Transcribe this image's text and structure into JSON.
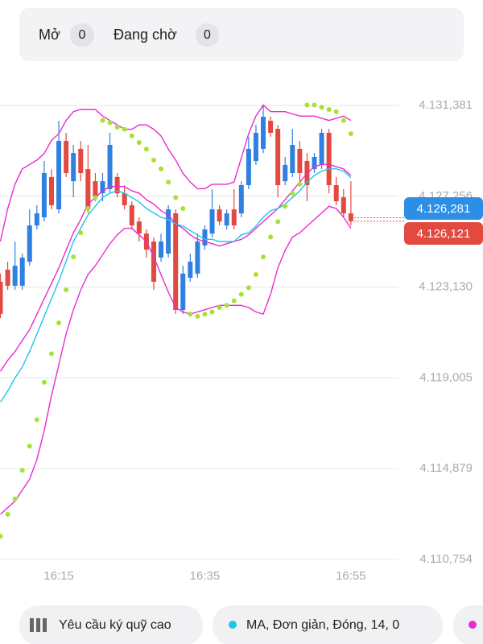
{
  "tabs": [
    {
      "label": "Mở",
      "count": 0
    },
    {
      "label": "Đang chờ",
      "count": 0
    }
  ],
  "chart_data": {
    "type": "candlestick",
    "x": [
      null,
      null,
      null,
      null,
      null,
      null,
      null,
      null,
      "16:15",
      null,
      null,
      null,
      null,
      null,
      null,
      null,
      null,
      null,
      null,
      null,
      null,
      null,
      null,
      null,
      null,
      null,
      null,
      null,
      "16:35",
      null,
      null,
      null,
      null,
      null,
      null,
      null,
      null,
      null,
      null,
      null,
      null,
      null,
      null,
      null,
      null,
      null,
      null,
      null,
      "16:55"
    ],
    "open": [
      4123.37,
      4123.92,
      4123.19,
      4123.19,
      4124.28,
      4125.93,
      4126.3,
      4128.13,
      4126.66,
      4129.77,
      4127.94,
      4129.41,
      4128.49,
      4127.94,
      4127.39,
      4127.58,
      4128.13,
      4127.39,
      4126.85,
      4126.11,
      4125.56,
      4125.2,
      4124.47,
      4124.65,
      4126.48,
      4122.09,
      4123.55,
      4123.74,
      4125.02,
      4125.56,
      4126.66,
      4125.93,
      4126.66,
      4126.48,
      4127.76,
      4128.86,
      4129.41,
      4130.69,
      4130.32,
      4127.94,
      4128.31,
      4129.41,
      4128.86,
      4128.49,
      4128.68,
      4130.14,
      4127.76,
      4127.21,
      4126.48
    ],
    "high": [
      4123.74,
      4124.28,
      4125.2,
      4124.65,
      4126.66,
      4126.85,
      4128.86,
      4128.49,
      4130.69,
      4130.14,
      4129.59,
      4129.77,
      4129.59,
      4128.31,
      4128.31,
      4130.14,
      4128.31,
      4127.76,
      4127.03,
      4126.3,
      4125.75,
      4125.38,
      4125.56,
      4126.85,
      4126.66,
      4124.1,
      4124.65,
      4125.56,
      4125.93,
      4127.58,
      4126.85,
      4126.66,
      4127.58,
      4127.94,
      4129.96,
      4130.5,
      4131.42,
      4130.87,
      4130.5,
      4129.04,
      4130.32,
      4129.77,
      4129.22,
      4129.22,
      4130.32,
      4130.32,
      4128.13,
      4127.58,
      4127.94
    ],
    "low": [
      4121.72,
      4123.0,
      4123.0,
      4123.0,
      4124.1,
      4125.75,
      4126.11,
      4126.66,
      4126.48,
      4128.13,
      4127.21,
      4127.94,
      4126.48,
      4127.03,
      4127.03,
      4127.39,
      4127.21,
      4126.66,
      4125.75,
      4125.2,
      4124.47,
      4123.0,
      4124.28,
      4124.47,
      4121.91,
      4121.91,
      4123.37,
      4123.55,
      4124.83,
      4125.38,
      4125.93,
      4125.75,
      4125.75,
      4126.3,
      4127.58,
      4128.68,
      4129.22,
      4129.96,
      4127.21,
      4127.76,
      4128.13,
      4127.94,
      4127.03,
      4128.31,
      4128.49,
      4127.39,
      4126.85,
      4126.3,
      4125.93
    ],
    "close": [
      4121.91,
      4123.19,
      4124.1,
      4124.47,
      4125.93,
      4126.48,
      4128.31,
      4126.85,
      4129.77,
      4128.31,
      4129.22,
      4128.31,
      4126.66,
      4127.21,
      4127.94,
      4129.59,
      4127.39,
      4126.85,
      4125.93,
      4125.56,
      4124.83,
      4123.37,
      4125.2,
      4126.66,
      4122.09,
      4123.74,
      4124.28,
      4125.2,
      4125.75,
      4126.66,
      4126.11,
      4126.48,
      4125.93,
      4127.76,
      4129.41,
      4130.14,
      4130.87,
      4130.14,
      4127.76,
      4128.68,
      4129.59,
      4128.31,
      4127.76,
      4129.04,
      4130.14,
      4127.76,
      4127.03,
      4126.48,
      4126.12
    ],
    "up_color": "#2f80e0",
    "down_color": "#e2493f",
    "series": [
      {
        "color": "#ec2ad0",
        "style": "line",
        "values": [
          4125.2,
          4126.7,
          4127.8,
          4128.5,
          4128.7,
          4128.9,
          4129.2,
          4129.8,
          4130.1,
          4130.7,
          4131.1,
          4131.2,
          4131.2,
          4131.2,
          4130.9,
          4130.7,
          4130.5,
          4130.3,
          4130.3,
          4130.5,
          4130.5,
          4130.3,
          4130.0,
          4129.4,
          4128.9,
          4128.3,
          4127.9,
          4127.6,
          4127.6,
          4127.8,
          4127.8,
          4127.8,
          4127.9,
          4129.0,
          4130.1,
          4130.9,
          4131.4,
          4131.1,
          4131.1,
          4131.1,
          4131.0,
          4130.9,
          4130.9,
          4130.9,
          4130.8,
          4130.7,
          4130.8,
          4130.9,
          4130.7
        ]
      },
      {
        "color": "#ec2ad0",
        "style": "line",
        "values": [
          4119.3,
          4119.8,
          4120.2,
          4120.7,
          4121.2,
          4121.9,
          4122.6,
          4123.3,
          4124.0,
          4124.8,
          4125.6,
          4126.2,
          4126.9,
          4127.2,
          4127.5,
          4127.7,
          4127.7,
          4127.7,
          4127.5,
          4127.4,
          4127.1,
          4126.9,
          4126.6,
          4126.4,
          4126.0,
          4125.8,
          4125.5,
          4125.3,
          4125.2,
          4125.1,
          4125.0,
          4125.1,
          4125.2,
          4125.3,
          4125.5,
          4125.8,
          4126.1,
          4126.4,
          4126.7,
          4127.1,
          4127.5,
          4127.9,
          4128.3,
          4128.6,
          4128.7,
          4128.7,
          4128.6,
          4128.5,
          4128.2
        ]
      },
      {
        "color": "#ec2ad0",
        "style": "line",
        "values": [
          4112.8,
          4113.1,
          4113.4,
          4113.9,
          4114.4,
          4115.3,
          4116.6,
          4118.2,
          4119.6,
          4121.0,
          4122.1,
          4123.0,
          4123.7,
          4124.1,
          4124.6,
          4125.1,
          4125.5,
          4125.8,
          4125.8,
          4125.5,
          4125.2,
          4124.5,
          4123.7,
          4122.9,
          4122.2,
          4122.0,
          4121.9,
          4122.0,
          4122.1,
          4122.2,
          4122.3,
          4122.3,
          4122.3,
          4122.3,
          4122.2,
          4122.0,
          4121.9,
          4122.8,
          4124.0,
          4124.8,
          4125.4,
          4125.6,
          4125.9,
          4126.2,
          4126.5,
          4126.8,
          4126.7,
          4126.3,
          4125.8
        ]
      },
      {
        "color": "#1ec6ea",
        "style": "line",
        "values": [
          4117.9,
          4118.4,
          4119.0,
          4119.5,
          4120.2,
          4121.0,
          4121.8,
          4122.6,
          4123.4,
          4124.3,
          4125.2,
          4125.8,
          4126.4,
          4126.8,
          4127.2,
          4127.4,
          4127.5,
          4127.4,
          4127.2,
          4127.0,
          4126.7,
          4126.5,
          4126.3,
          4126.2,
          4126.0,
          4125.9,
          4125.7,
          4125.5,
          4125.3,
          4125.3,
          4125.2,
          4125.2,
          4125.2,
          4125.5,
          4125.6,
          4125.9,
          4126.3,
          4126.6,
          4126.7,
          4126.9,
          4127.2,
          4127.5,
          4127.9,
          4128.2,
          4128.4,
          4128.5,
          4128.5,
          4128.4,
          4128.1
        ]
      },
      {
        "color": "#a5e234",
        "style": "dots",
        "values": [
          4111.8,
          4112.8,
          4113.5,
          4114.8,
          4115.9,
          4117.1,
          4118.8,
          4120.1,
          4121.5,
          4123.0,
          4124.5,
          4125.6,
          4126.7,
          4127.2,
          4130.7,
          4130.6,
          4130.4,
          4130.3,
          4130.0,
          4129.7,
          4129.4,
          4128.9,
          4128.5,
          4127.9,
          4127.2,
          4126.7,
          4121.9,
          4121.8,
          4121.9,
          4122.0,
          4122.2,
          4122.3,
          4122.5,
          4122.8,
          4123.1,
          4123.7,
          4124.5,
          4125.4,
          4126.1,
          4126.8,
          4127.4,
          4127.8,
          4131.4,
          4131.4,
          4131.3,
          4131.2,
          4131.1,
          4130.7,
          4130.1
        ]
      }
    ],
    "ylim": [
      4110.2,
      4132.7
    ],
    "yticks": [
      {
        "value": 4131.381,
        "label": "4.131,381"
      },
      {
        "value": 4127.256,
        "label": "4.127,256"
      },
      {
        "value": 4123.13,
        "label": "4.123,130"
      },
      {
        "value": 4119.005,
        "label": "4.119,005"
      },
      {
        "value": 4114.879,
        "label": "4.114,879"
      },
      {
        "value": 4110.754,
        "label": "4.110,754"
      }
    ],
    "grid": true,
    "price_tags": [
      {
        "value": 4126.281,
        "label": "4.126,281",
        "color": "#2d8ee6"
      },
      {
        "value": 4126.121,
        "label": "4.126,121",
        "color": "#e2493f"
      }
    ]
  },
  "footer": {
    "chips": [
      {
        "label": "Yêu cầu ký quỹ cao"
      },
      {
        "label": "MA, Đơn giản, Đóng, 14, 0",
        "color": "#1ec6ea"
      },
      {
        "color": "#ec2ad0"
      }
    ]
  }
}
